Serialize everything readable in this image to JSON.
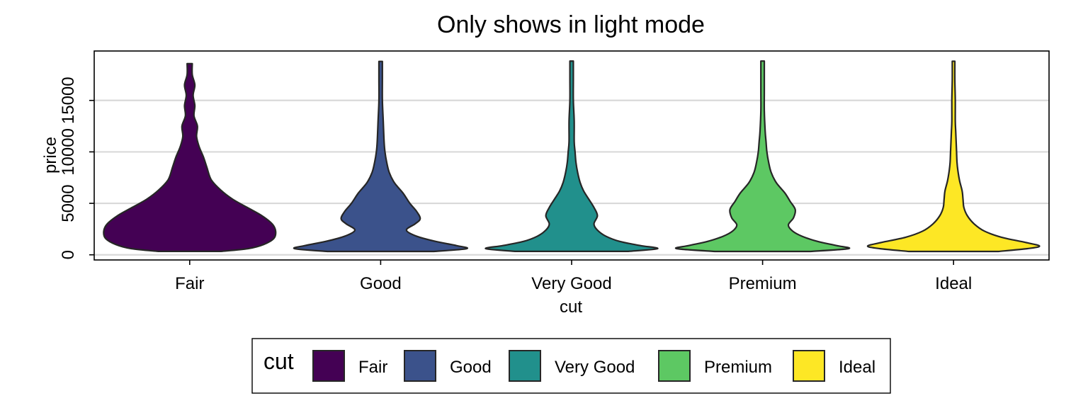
{
  "chart_data": {
    "type": "violin",
    "title": "Only shows in light mode",
    "xlabel": "cut",
    "ylabel": "price",
    "categories": [
      "Fair",
      "Good",
      "Very Good",
      "Premium",
      "Ideal"
    ],
    "yticks": [
      0,
      5000,
      10000,
      15000
    ],
    "ytick_labels": [
      "0",
      "5000",
      "10000",
      "15000"
    ],
    "ylim": [
      -500,
      19800
    ],
    "grid": true,
    "legend": {
      "title": "cut",
      "position": "bottom",
      "entries": [
        "Fair",
        "Good",
        "Very Good",
        "Premium",
        "Ideal"
      ]
    },
    "colors": [
      "#440154",
      "#3B528B",
      "#21908C",
      "#5DC863",
      "#FDE725"
    ],
    "series": [
      {
        "name": "Fair",
        "min": 337,
        "max": 18574,
        "density_price": [
          337,
          600,
          1000,
          1600,
          2300,
          3000,
          3800,
          4600,
          5400,
          6300,
          7300,
          8500,
          9500,
          10500,
          11500,
          12500,
          13500,
          14500,
          15500,
          16500,
          17500,
          18574
        ],
        "density_width": [
          0.37,
          0.68,
          0.86,
          0.98,
          1.0,
          0.96,
          0.84,
          0.67,
          0.5,
          0.36,
          0.25,
          0.2,
          0.16,
          0.11,
          0.08,
          0.09,
          0.05,
          0.06,
          0.04,
          0.06,
          0.03,
          0.03
        ]
      },
      {
        "name": "Good",
        "min": 327,
        "max": 18788,
        "density_price": [
          327,
          600,
          900,
          1300,
          1800,
          2400,
          3000,
          3500,
          4200,
          5000,
          6000,
          7000,
          8000,
          9000,
          10000,
          11000,
          13000,
          15000,
          17000,
          18788
        ],
        "density_width": [
          0.62,
          1.0,
          0.88,
          0.64,
          0.42,
          0.3,
          0.4,
          0.46,
          0.42,
          0.34,
          0.26,
          0.16,
          0.1,
          0.07,
          0.05,
          0.04,
          0.03,
          0.02,
          0.02,
          0.02
        ]
      },
      {
        "name": "Very Good",
        "min": 336,
        "max": 18818,
        "density_price": [
          336,
          600,
          900,
          1300,
          1800,
          2400,
          3000,
          3800,
          4600,
          5400,
          6200,
          7000,
          8000,
          9000,
          10000,
          11000,
          13000,
          15000,
          17000,
          18818
        ],
        "density_width": [
          0.66,
          1.0,
          0.8,
          0.56,
          0.4,
          0.3,
          0.26,
          0.3,
          0.26,
          0.2,
          0.14,
          0.1,
          0.07,
          0.05,
          0.04,
          0.03,
          0.03,
          0.02,
          0.02,
          0.02
        ]
      },
      {
        "name": "Premium",
        "min": 326,
        "max": 18823,
        "density_price": [
          326,
          600,
          900,
          1300,
          1800,
          2300,
          2900,
          3600,
          4400,
          5200,
          6000,
          7000,
          8000,
          9000,
          10000,
          11000,
          12000,
          14000,
          16000,
          18823
        ],
        "density_width": [
          0.55,
          1.0,
          0.86,
          0.64,
          0.46,
          0.35,
          0.3,
          0.36,
          0.38,
          0.32,
          0.26,
          0.16,
          0.1,
          0.07,
          0.05,
          0.04,
          0.03,
          0.02,
          0.02,
          0.02
        ]
      },
      {
        "name": "Ideal",
        "min": 326,
        "max": 18806,
        "density_price": [
          326,
          600,
          850,
          1200,
          1700,
          2300,
          3000,
          3800,
          4600,
          5400,
          6200,
          7200,
          8200,
          9000,
          10000,
          11000,
          12000,
          13000,
          15000,
          17000,
          18806
        ],
        "density_width": [
          0.52,
          0.86,
          1.0,
          0.84,
          0.56,
          0.36,
          0.24,
          0.16,
          0.12,
          0.11,
          0.1,
          0.07,
          0.05,
          0.04,
          0.035,
          0.03,
          0.025,
          0.02,
          0.02,
          0.015,
          0.015
        ]
      }
    ]
  }
}
